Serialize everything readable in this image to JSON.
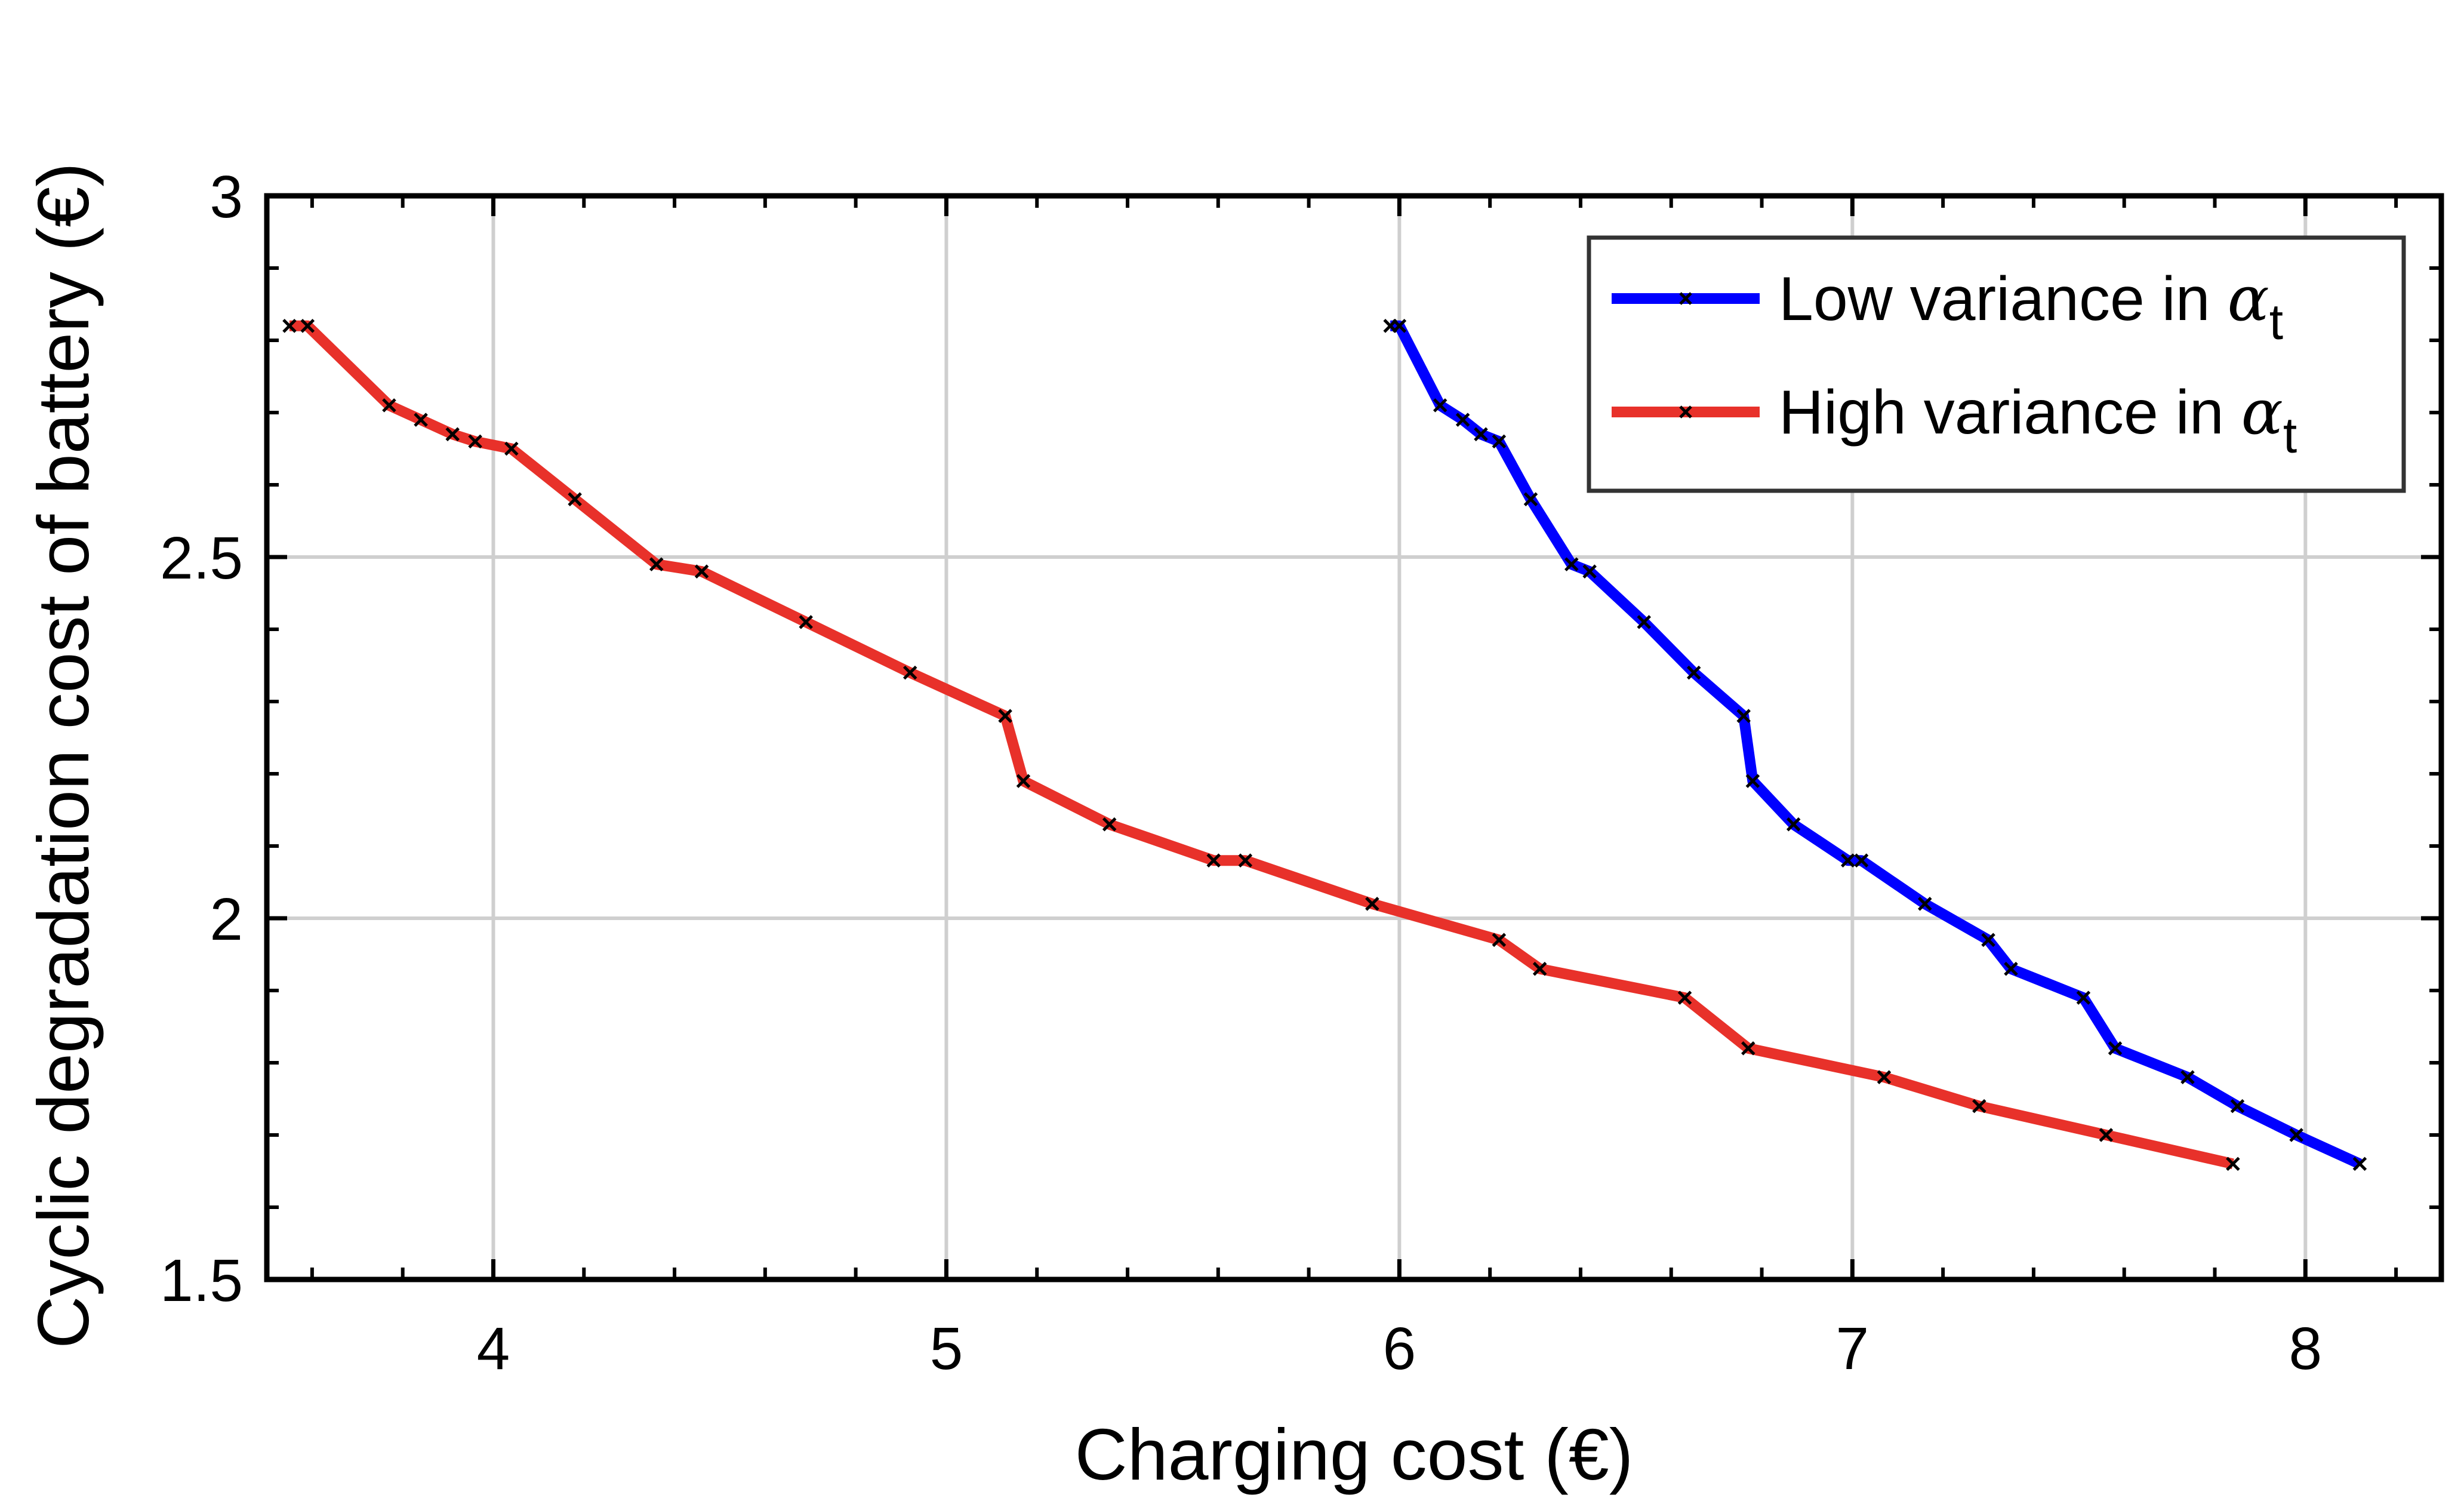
{
  "chart_data": {
    "type": "line",
    "title": "",
    "xlabel": "Charging cost (€)",
    "ylabel": "Cyclic degradation cost of battery (€)",
    "xlim": [
      3.5,
      8.3
    ],
    "ylim": [
      1.5,
      3.0
    ],
    "xticks": [
      4,
      5,
      6,
      7,
      8
    ],
    "xtick_labels": [
      "4",
      "5",
      "6",
      "7",
      "8"
    ],
    "yticks": [
      1.5,
      2.0,
      2.5,
      3.0
    ],
    "ytick_labels": [
      "1.5",
      "2",
      "2.5",
      "3"
    ],
    "grid": true,
    "legend_position": "top-right",
    "series": [
      {
        "name": "Low variance in α_t",
        "legend_text": "Low variance in ",
        "legend_symbol": "α",
        "legend_subscript": "t",
        "color": "#0000ff",
        "x": [
          5.98,
          6.0,
          6.09,
          6.14,
          6.18,
          6.22,
          6.29,
          6.38,
          6.42,
          6.54,
          6.65,
          6.76,
          6.78,
          6.87,
          6.99,
          7.02,
          7.16,
          7.3,
          7.35,
          7.51,
          7.58,
          7.74,
          7.85,
          7.98,
          8.12
        ],
        "y": [
          2.82,
          2.82,
          2.71,
          2.69,
          2.67,
          2.66,
          2.58,
          2.49,
          2.48,
          2.41,
          2.34,
          2.28,
          2.19,
          2.13,
          2.08,
          2.08,
          2.02,
          1.97,
          1.93,
          1.89,
          1.82,
          1.78,
          1.74,
          1.7,
          1.66
        ]
      },
      {
        "name": "High variance in α_t",
        "legend_text": "High variance in ",
        "legend_symbol": "α",
        "legend_subscript": "t",
        "color": "#e8312a",
        "x": [
          3.55,
          3.59,
          3.77,
          3.84,
          3.91,
          3.96,
          4.04,
          4.18,
          4.36,
          4.46,
          4.69,
          4.92,
          5.13,
          5.17,
          5.36,
          5.59,
          5.66,
          5.94,
          6.22,
          6.31,
          6.63,
          6.77,
          7.07,
          7.28,
          7.56,
          7.84
        ],
        "y": [
          2.82,
          2.82,
          2.71,
          2.69,
          2.67,
          2.66,
          2.65,
          2.58,
          2.49,
          2.48,
          2.41,
          2.34,
          2.28,
          2.19,
          2.13,
          2.08,
          2.08,
          2.02,
          1.97,
          1.93,
          1.89,
          1.82,
          1.78,
          1.74,
          1.7,
          1.66
        ]
      }
    ]
  }
}
